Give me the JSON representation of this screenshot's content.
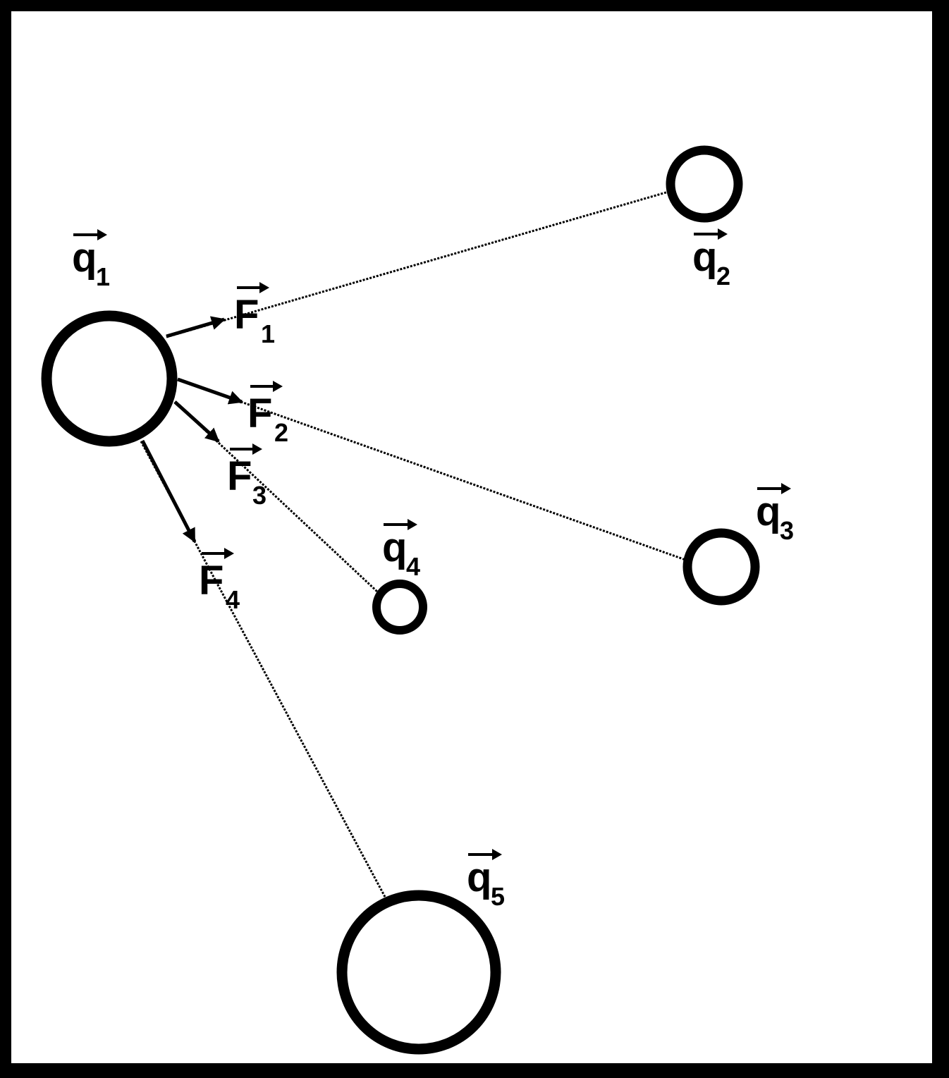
{
  "diagram": {
    "colors": {
      "frame": "#000000",
      "background": "#ffffff",
      "ink": "#000000"
    },
    "charges": [
      {
        "id": "q1",
        "symbol": "q",
        "subscript": "1"
      },
      {
        "id": "q2",
        "symbol": "q",
        "subscript": "2"
      },
      {
        "id": "q3",
        "symbol": "q",
        "subscript": "3"
      },
      {
        "id": "q4",
        "symbol": "q",
        "subscript": "4"
      },
      {
        "id": "q5",
        "symbol": "q",
        "subscript": "5"
      }
    ],
    "forces": [
      {
        "id": "F1",
        "symbol": "F",
        "subscript": "1",
        "target": "q2"
      },
      {
        "id": "F2",
        "symbol": "F",
        "subscript": "2",
        "target": "q3"
      },
      {
        "id": "F3",
        "symbol": "F",
        "subscript": "3",
        "target": "q4"
      },
      {
        "id": "F4",
        "symbol": "F",
        "subscript": "4",
        "target": "q5"
      }
    ]
  }
}
